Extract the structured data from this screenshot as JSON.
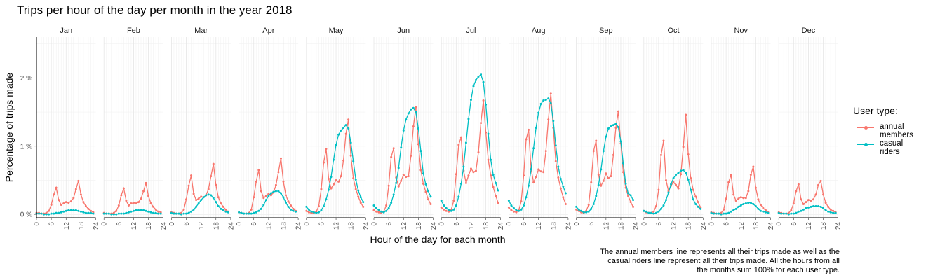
{
  "chart_data": {
    "type": "line",
    "title": "Trips per hour of the day per month in the year 2018",
    "xlabel": "Hour of the day for each month",
    "ylabel": "Percentage of trips made",
    "facets": [
      "Jan",
      "Feb",
      "Mar",
      "Apr",
      "May",
      "Jun",
      "Jul",
      "Aug",
      "Sep",
      "Oct",
      "Nov",
      "Dec"
    ],
    "x": [
      0,
      1,
      2,
      3,
      4,
      5,
      6,
      7,
      8,
      9,
      10,
      11,
      12,
      13,
      14,
      15,
      16,
      17,
      18,
      19,
      20,
      21,
      22,
      23
    ],
    "xticks": [
      "0",
      "6",
      "12",
      "18",
      "24"
    ],
    "xlim": [
      0,
      24
    ],
    "yticks": [
      "0 %",
      "1 %",
      "2 %"
    ],
    "ylim": [
      -0.05,
      2.6
    ],
    "legend_title": "User type:",
    "legend_position": "right",
    "grid": true,
    "series": [
      {
        "name": "annual members",
        "color": "#F8766D",
        "values": [
          [
            0.02,
            0.02,
            0.01,
            0.01,
            0.02,
            0.05,
            0.14,
            0.29,
            0.39,
            0.21,
            0.14,
            0.16,
            0.18,
            0.17,
            0.19,
            0.24,
            0.37,
            0.49,
            0.29,
            0.18,
            0.12,
            0.08,
            0.05,
            0.03
          ],
          [
            0.02,
            0.01,
            0.01,
            0.01,
            0.02,
            0.05,
            0.13,
            0.28,
            0.38,
            0.2,
            0.13,
            0.16,
            0.17,
            0.16,
            0.18,
            0.23,
            0.34,
            0.46,
            0.27,
            0.16,
            0.11,
            0.07,
            0.04,
            0.03
          ],
          [
            0.03,
            0.02,
            0.01,
            0.01,
            0.02,
            0.07,
            0.22,
            0.42,
            0.57,
            0.3,
            0.21,
            0.23,
            0.26,
            0.25,
            0.28,
            0.37,
            0.56,
            0.74,
            0.43,
            0.25,
            0.16,
            0.11,
            0.07,
            0.04
          ],
          [
            0.03,
            0.02,
            0.01,
            0.01,
            0.02,
            0.07,
            0.25,
            0.48,
            0.65,
            0.34,
            0.24,
            0.27,
            0.3,
            0.28,
            0.32,
            0.43,
            0.62,
            0.82,
            0.48,
            0.28,
            0.19,
            0.13,
            0.08,
            0.05
          ],
          [
            0.05,
            0.03,
            0.02,
            0.02,
            0.04,
            0.12,
            0.37,
            0.76,
            0.96,
            0.52,
            0.38,
            0.44,
            0.5,
            0.48,
            0.56,
            0.79,
            1.18,
            1.39,
            0.86,
            0.53,
            0.37,
            0.26,
            0.17,
            0.11
          ],
          [
            0.06,
            0.04,
            0.03,
            0.02,
            0.04,
            0.13,
            0.42,
            0.84,
            0.97,
            0.54,
            0.41,
            0.49,
            0.58,
            0.55,
            0.56,
            0.86,
            1.29,
            1.57,
            1.03,
            0.65,
            0.45,
            0.33,
            0.22,
            0.15
          ],
          [
            0.1,
            0.07,
            0.05,
            0.04,
            0.07,
            0.2,
            0.59,
            1.02,
            1.13,
            0.64,
            0.46,
            0.57,
            0.67,
            0.62,
            0.64,
            0.91,
            1.34,
            1.67,
            1.2,
            0.8,
            0.57,
            0.4,
            0.27,
            0.17
          ],
          [
            0.1,
            0.06,
            0.04,
            0.03,
            0.06,
            0.19,
            0.57,
            1.1,
            1.24,
            0.67,
            0.47,
            0.55,
            0.66,
            0.63,
            0.62,
            0.93,
            1.39,
            1.77,
            1.27,
            0.78,
            0.54,
            0.38,
            0.25,
            0.15
          ],
          [
            0.07,
            0.05,
            0.03,
            0.02,
            0.05,
            0.14,
            0.47,
            0.93,
            1.08,
            0.58,
            0.42,
            0.49,
            0.6,
            0.53,
            0.56,
            0.87,
            1.27,
            1.51,
            1.04,
            0.62,
            0.39,
            0.27,
            0.18,
            0.11
          ],
          [
            0.05,
            0.03,
            0.02,
            0.02,
            0.04,
            0.12,
            0.36,
            0.87,
            1.08,
            0.5,
            0.34,
            0.42,
            0.47,
            0.43,
            0.38,
            0.59,
            0.99,
            1.46,
            0.88,
            0.53,
            0.36,
            0.26,
            0.18,
            0.1
          ],
          [
            0.03,
            0.02,
            0.01,
            0.01,
            0.02,
            0.07,
            0.23,
            0.47,
            0.58,
            0.29,
            0.2,
            0.23,
            0.25,
            0.24,
            0.24,
            0.34,
            0.58,
            0.7,
            0.39,
            0.22,
            0.14,
            0.09,
            0.06,
            0.03
          ],
          [
            0.03,
            0.02,
            0.01,
            0.01,
            0.02,
            0.06,
            0.16,
            0.34,
            0.44,
            0.22,
            0.15,
            0.18,
            0.21,
            0.2,
            0.22,
            0.29,
            0.43,
            0.49,
            0.29,
            0.17,
            0.11,
            0.07,
            0.05,
            0.03
          ]
        ]
      },
      {
        "name": "casual riders",
        "color": "#00BFC4",
        "values": [
          [
            0.01,
            0.01,
            0.01,
            0.0,
            0.0,
            0.0,
            0.01,
            0.01,
            0.02,
            0.02,
            0.03,
            0.04,
            0.05,
            0.06,
            0.06,
            0.06,
            0.06,
            0.05,
            0.04,
            0.03,
            0.02,
            0.02,
            0.02,
            0.01
          ],
          [
            0.01,
            0.01,
            0.01,
            0.0,
            0.0,
            0.0,
            0.01,
            0.01,
            0.01,
            0.02,
            0.03,
            0.04,
            0.05,
            0.06,
            0.06,
            0.06,
            0.06,
            0.05,
            0.04,
            0.03,
            0.02,
            0.02,
            0.01,
            0.01
          ],
          [
            0.02,
            0.01,
            0.01,
            0.01,
            0.0,
            0.01,
            0.01,
            0.02,
            0.04,
            0.07,
            0.11,
            0.16,
            0.21,
            0.25,
            0.28,
            0.29,
            0.28,
            0.24,
            0.18,
            0.12,
            0.08,
            0.06,
            0.04,
            0.03
          ],
          [
            0.03,
            0.02,
            0.01,
            0.01,
            0.01,
            0.01,
            0.02,
            0.03,
            0.05,
            0.08,
            0.14,
            0.21,
            0.27,
            0.31,
            0.33,
            0.34,
            0.34,
            0.31,
            0.25,
            0.17,
            0.11,
            0.07,
            0.05,
            0.04
          ],
          [
            0.11,
            0.07,
            0.04,
            0.03,
            0.02,
            0.03,
            0.06,
            0.12,
            0.22,
            0.36,
            0.55,
            0.8,
            1.02,
            1.17,
            1.23,
            1.27,
            1.31,
            1.26,
            1.05,
            0.78,
            0.51,
            0.35,
            0.25,
            0.18
          ],
          [
            0.13,
            0.09,
            0.06,
            0.04,
            0.03,
            0.05,
            0.09,
            0.17,
            0.29,
            0.46,
            0.68,
            0.98,
            1.23,
            1.39,
            1.48,
            1.54,
            1.56,
            1.5,
            1.26,
            0.93,
            0.6,
            0.44,
            0.34,
            0.26
          ],
          [
            0.2,
            0.13,
            0.09,
            0.06,
            0.05,
            0.07,
            0.13,
            0.26,
            0.45,
            0.7,
            1.05,
            1.4,
            1.68,
            1.88,
            1.97,
            2.02,
            2.05,
            1.94,
            1.61,
            1.18,
            0.8,
            0.58,
            0.46,
            0.35
          ],
          [
            0.2,
            0.13,
            0.09,
            0.06,
            0.05,
            0.07,
            0.13,
            0.25,
            0.42,
            0.66,
            0.97,
            1.27,
            1.49,
            1.62,
            1.67,
            1.68,
            1.7,
            1.63,
            1.37,
            1.01,
            0.7,
            0.52,
            0.41,
            0.31
          ],
          [
            0.11,
            0.07,
            0.05,
            0.03,
            0.03,
            0.04,
            0.08,
            0.15,
            0.27,
            0.43,
            0.66,
            0.93,
            1.14,
            1.26,
            1.29,
            1.31,
            1.33,
            1.28,
            1.07,
            0.75,
            0.45,
            0.31,
            0.28,
            0.21
          ],
          [
            0.05,
            0.04,
            0.02,
            0.02,
            0.01,
            0.02,
            0.04,
            0.08,
            0.13,
            0.21,
            0.32,
            0.44,
            0.53,
            0.58,
            0.61,
            0.64,
            0.65,
            0.61,
            0.51,
            0.36,
            0.22,
            0.15,
            0.11,
            0.08
          ],
          [
            0.02,
            0.01,
            0.01,
            0.01,
            0.0,
            0.01,
            0.01,
            0.02,
            0.04,
            0.06,
            0.08,
            0.11,
            0.13,
            0.15,
            0.16,
            0.17,
            0.17,
            0.15,
            0.12,
            0.08,
            0.05,
            0.04,
            0.03,
            0.02
          ],
          [
            0.02,
            0.01,
            0.01,
            0.01,
            0.0,
            0.01,
            0.01,
            0.02,
            0.04,
            0.05,
            0.07,
            0.09,
            0.1,
            0.11,
            0.12,
            0.12,
            0.12,
            0.11,
            0.09,
            0.06,
            0.04,
            0.03,
            0.02,
            0.02
          ]
        ]
      }
    ],
    "caption": [
      "The annual members line represents all their trips made as well as the",
      "casual riders line represent all their trips made. All the hours from all",
      "the months sum 100% for each user type."
    ]
  }
}
